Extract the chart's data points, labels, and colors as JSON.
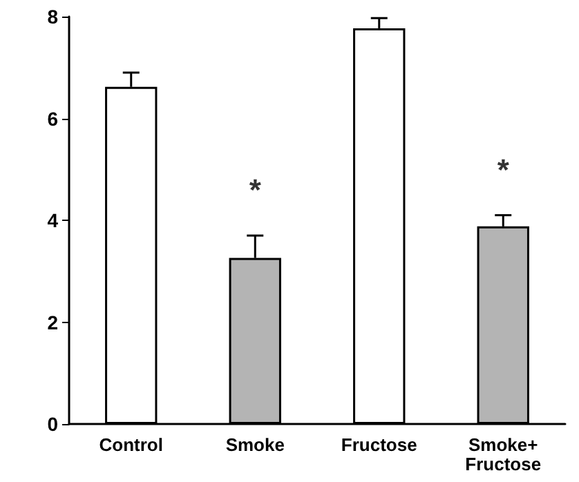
{
  "chart_data": {
    "type": "bar",
    "categories": [
      "Control",
      "Smoke",
      "Fructose",
      "Smoke+\nFructose"
    ],
    "values": [
      6.62,
      3.26,
      7.77,
      3.88
    ],
    "colors": [
      "#ffffff",
      "#b4b4b4",
      "#ffffff",
      "#b4b4b4"
    ],
    "errors": [
      [
        6.62,
        6.9
      ],
      [
        3.26,
        3.7
      ],
      [
        7.77,
        7.97
      ],
      [
        3.88,
        4.1
      ]
    ],
    "ylim": [
      0,
      8
    ],
    "yticks": [
      0,
      2,
      4,
      6,
      8
    ],
    "grid": false,
    "annotations": [
      {
        "text": "*",
        "x": "Smoke",
        "y": 3.7
      },
      {
        "text": "*",
        "x": "Smoke+\nFructose",
        "y": 4.1
      }
    ]
  }
}
